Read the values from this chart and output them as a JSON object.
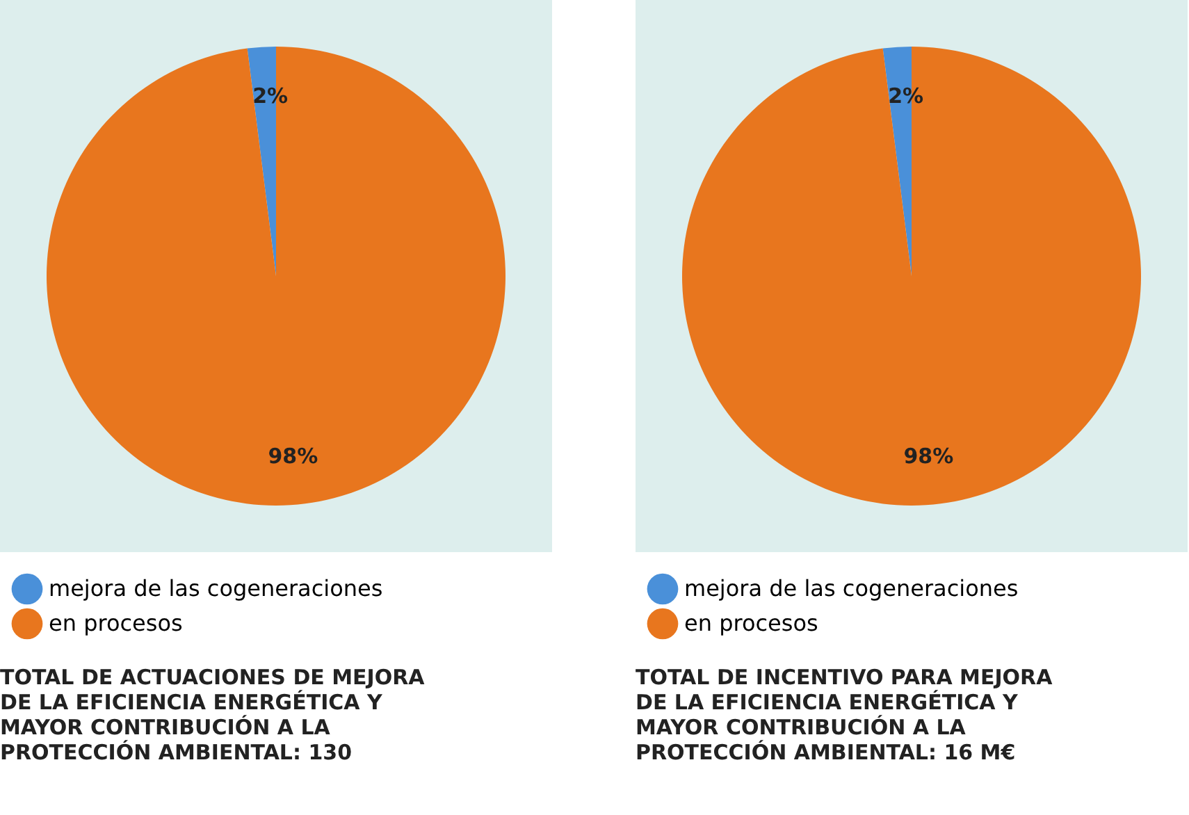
{
  "chart_data": [
    {
      "type": "pie",
      "title": "TOTAL DE ACTUACIONES DE MEJORA DE LA EFICIENCIA ENERGÉTICA Y MAYOR CONTRIBUCIÓN A LA PROTECCIÓN AMBIENTAL: 130",
      "categories": [
        "mejora de las cogeneraciones",
        "en procesos"
      ],
      "values": [
        2,
        98
      ],
      "colors": [
        "#4a90d9",
        "#e8761e"
      ],
      "value_labels": [
        "2%",
        "98%"
      ],
      "legend": "bottom"
    },
    {
      "type": "pie",
      "title": "TOTAL DE INCENTIVO PARA MEJORA DE LA EFICIENCIA ENERGÉTICA Y MAYOR CONTRIBUCIÓN A LA PROTECCIÓN AMBIENTAL: 16 M€",
      "categories": [
        "mejora de las cogeneraciones",
        "en procesos"
      ],
      "values": [
        2,
        98
      ],
      "colors": [
        "#4a90d9",
        "#e8761e"
      ],
      "value_labels": [
        "2%",
        "98%"
      ],
      "legend": "bottom"
    }
  ]
}
